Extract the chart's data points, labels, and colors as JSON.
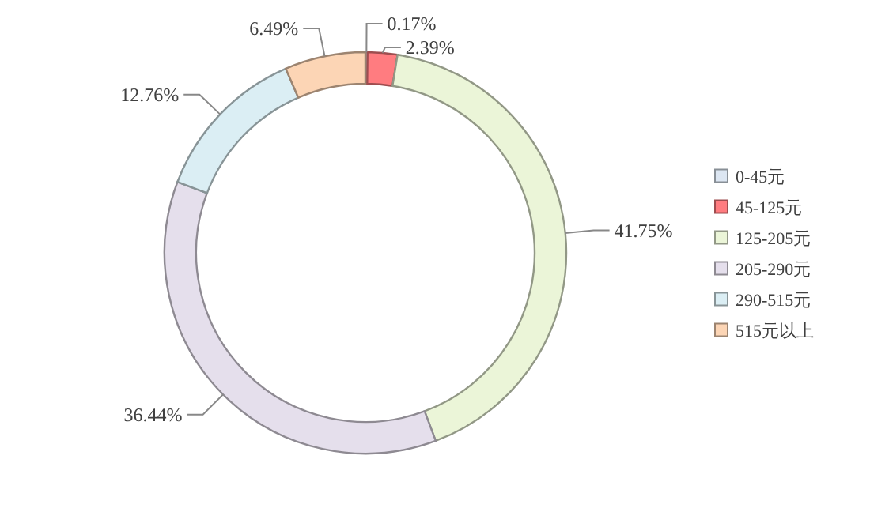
{
  "chart_data": {
    "type": "donut",
    "categories": [
      "0-45元",
      "45-125元",
      "125-205元",
      "205-290元",
      "290-515元",
      "515元以上"
    ],
    "values": [
      0.17,
      2.39,
      41.75,
      36.44,
      12.76,
      6.49
    ],
    "colors": [
      "#dce6f2",
      "#ff7c80",
      "#ebf5d8",
      "#e5dfec",
      "#dbeef4",
      "#fcd5b5"
    ],
    "value_labels": [
      "0.17%",
      "2.39%",
      "41.75%",
      "36.44%",
      "12.76%",
      "6.49%"
    ],
    "legend": "right"
  }
}
